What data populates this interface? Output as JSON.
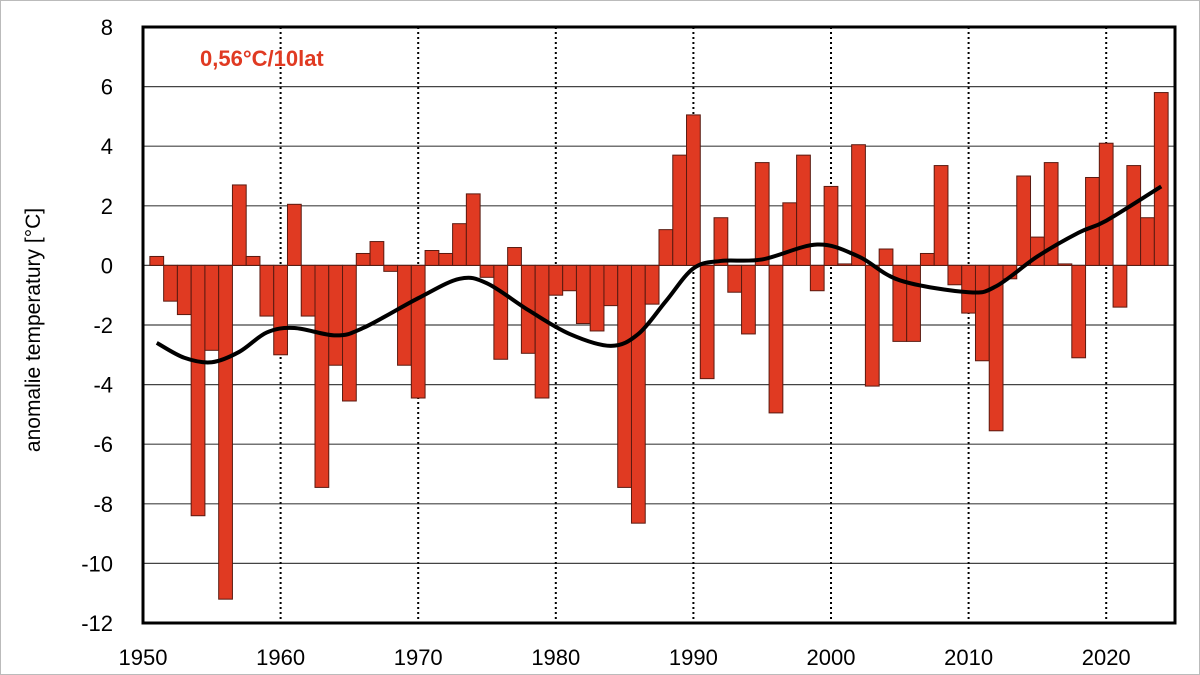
{
  "chart_data": {
    "type": "bar",
    "title": "",
    "xlabel": "",
    "ylabel": "anomalie temperatury [°C]",
    "annotation": "0,56°C/10lat",
    "xlim": [
      1950,
      2025
    ],
    "ylim": [
      -12,
      8
    ],
    "x_ticks": [
      "1950",
      "1960",
      "1970",
      "1980",
      "1990",
      "2000",
      "2010",
      "2020"
    ],
    "y_ticks": [
      "8",
      "6",
      "4",
      "2",
      "0",
      "-2",
      "-4",
      "-6",
      "-8",
      "-10",
      "-12"
    ],
    "grid": "horizontal solid, vertical dotted",
    "colors": {
      "bar": "#e03a22",
      "bar_edge": "#5a1a10",
      "trend": "#000000"
    },
    "series": [
      {
        "name": "anomalie",
        "x": [
          1951,
          1952,
          1953,
          1954,
          1955,
          1956,
          1957,
          1958,
          1959,
          1960,
          1961,
          1962,
          1963,
          1964,
          1965,
          1966,
          1967,
          1968,
          1969,
          1970,
          1971,
          1972,
          1973,
          1974,
          1975,
          1976,
          1977,
          1978,
          1979,
          1980,
          1981,
          1982,
          1983,
          1984,
          1985,
          1986,
          1987,
          1988,
          1989,
          1990,
          1991,
          1992,
          1993,
          1994,
          1995,
          1996,
          1997,
          1998,
          1999,
          2000,
          2001,
          2002,
          2003,
          2004,
          2005,
          2006,
          2007,
          2008,
          2009,
          2010,
          2011,
          2012,
          2013,
          2014,
          2015,
          2016,
          2017,
          2018,
          2019,
          2020,
          2021,
          2022,
          2023,
          2024
        ],
        "values": [
          0.3,
          -1.2,
          -1.65,
          -8.4,
          -2.85,
          -11.2,
          2.7,
          0.3,
          -1.7,
          -3.0,
          2.05,
          -1.7,
          -7.45,
          -3.35,
          -4.55,
          0.4,
          0.8,
          -0.2,
          -3.35,
          -4.45,
          0.5,
          0.4,
          1.4,
          2.4,
          -0.4,
          -3.15,
          0.6,
          -2.95,
          -4.45,
          -1.0,
          -0.85,
          -1.95,
          -2.2,
          -1.35,
          -7.45,
          -8.65,
          -1.3,
          1.2,
          3.7,
          5.05,
          -3.8,
          1.6,
          -0.9,
          -2.3,
          3.45,
          -4.95,
          2.1,
          3.7,
          -0.85,
          2.65,
          0.05,
          4.05,
          -4.05,
          0.55,
          -2.55,
          -2.55,
          0.4,
          3.35,
          -0.65,
          -1.6,
          -3.2,
          -5.55,
          -0.45,
          3.0,
          0.95,
          3.45,
          0.05,
          -3.1,
          2.95,
          4.1,
          -1.4,
          3.35,
          1.6,
          5.8
        ]
      },
      {
        "name": "trend",
        "type": "line",
        "x": [
          1951,
          1953,
          1955,
          1957,
          1959,
          1961,
          1964,
          1966,
          1970,
          1973,
          1975,
          1978,
          1981,
          1984,
          1986,
          1988,
          1990,
          1992,
          1995,
          1999,
          2002,
          2005,
          2010,
          2012,
          2015,
          2018,
          2020,
          2024
        ],
        "values": [
          -2.6,
          -3.1,
          -3.25,
          -2.9,
          -2.25,
          -2.1,
          -2.35,
          -2.1,
          -1.1,
          -0.45,
          -0.6,
          -1.5,
          -2.3,
          -2.7,
          -2.3,
          -1.2,
          -0.1,
          0.15,
          0.2,
          0.7,
          0.3,
          -0.5,
          -0.9,
          -0.7,
          0.3,
          1.1,
          1.5,
          2.65
        ]
      }
    ]
  }
}
